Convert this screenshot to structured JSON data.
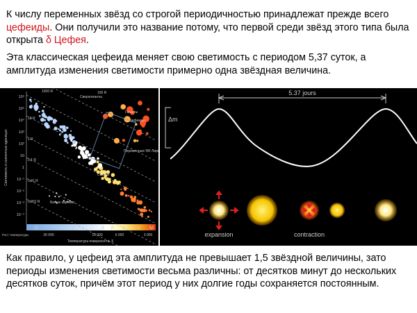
{
  "intro": {
    "text_1": "К числу переменных звёзд со строгой периодичностью принадлежат прежде всего ",
    "highlight_1": "цефеиды",
    "text_2": ". Они получили это название потому, что первой среди звёзд этого типа была открыта ",
    "highlight_2": "δ Цефея",
    "text_3": "."
  },
  "paragraph_2": "Эта классическая цефеида меняет свою светимость с периодом 5,37 суток, а амплитуда изменения светимости примерно одна звёздная величина.",
  "hr_diagram": {
    "y_ticks": [
      "10⁶",
      "10⁵",
      "10⁴",
      "10³",
      "10²",
      "10",
      "1",
      "10⁻¹",
      "10⁻²",
      "10⁻³",
      "10⁻⁴"
    ],
    "spectral_classes": [
      "O",
      "B",
      "A",
      "F",
      "G",
      "K",
      "M"
    ],
    "x_ticks": [
      "30 000",
      "10 000",
      "6 000",
      "3 000"
    ],
    "radii": [
      "1000 R",
      "100 R",
      "10 R",
      "1 R",
      "0,1 R",
      "0,01 R",
      "0,001 R"
    ],
    "regions": [
      "Сверхгиганты",
      "Гиганты",
      "Цефеиды",
      "Переменные RR Лиры",
      "Солнце",
      "Белые карлики"
    ],
    "y_axis_title": "Светимость в солнечных единицах",
    "x_axis_title": "Температура поверхности, К",
    "temperature_note": "Рост температуры"
  },
  "light_curve": {
    "period_label": "5.37 jours",
    "amplitude_label": "Δm",
    "expansion_label": "expansion",
    "contraction_label": "contraction"
  },
  "footer": "Как правило, у цефеид эта амплитуда не превышает 1,5 звёздной величины, зато периоды изменения светимости весьма различны: от десятков минут до нескольких десятков суток, причём этот период у них долгие годы сохраняется постоянным."
}
